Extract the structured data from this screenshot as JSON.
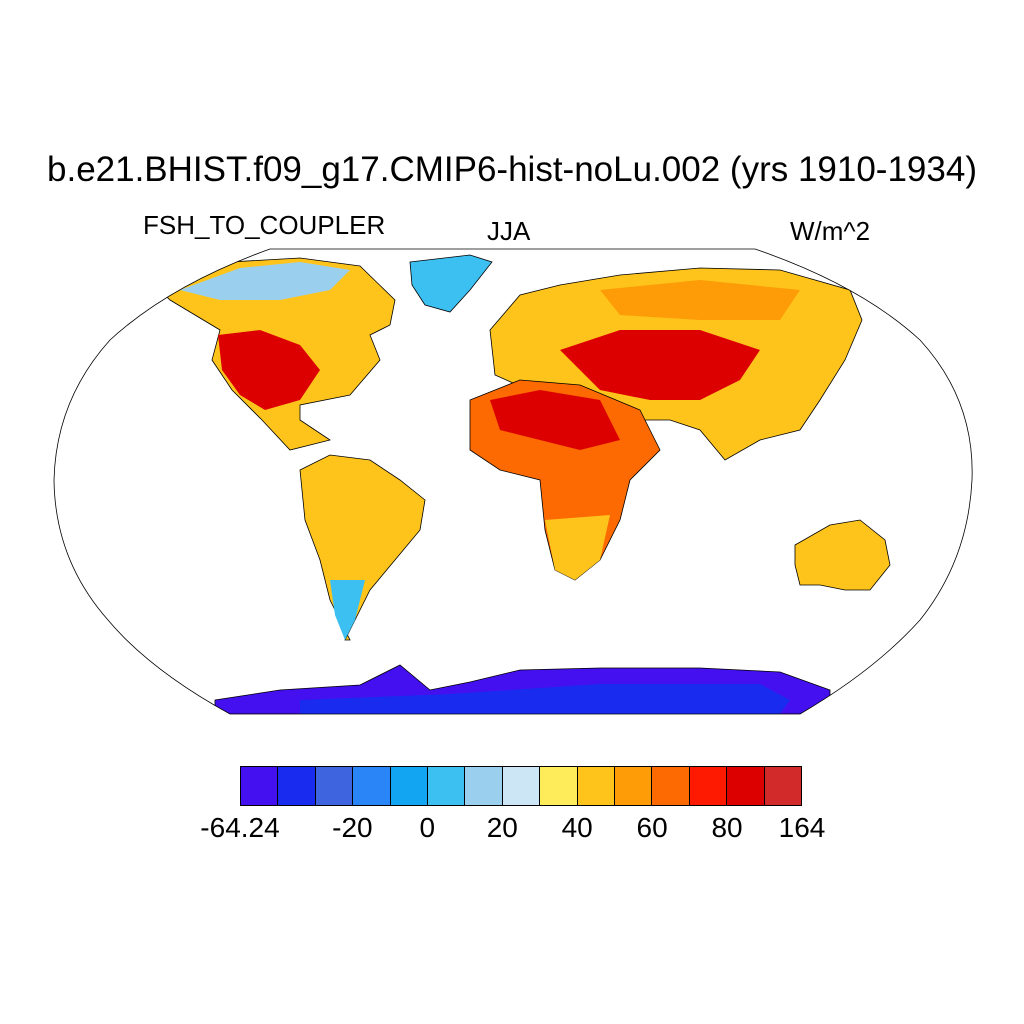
{
  "title": "b.e21.BHIST.f09_g17.CMIP6-hist-noLu.002 (yrs 1910-1934)",
  "variable": "FSH_TO_COUPLER",
  "season": "JJA",
  "units": "W/m^2",
  "map": {
    "projection": "Robinson",
    "ocean_color": "#ffffff",
    "coastline_color": "#000000"
  },
  "colorbar": {
    "colors": [
      "#4410f0",
      "#1a2bf0",
      "#3f64e0",
      "#2a86f6",
      "#12a6f2",
      "#3cc0f2",
      "#9ad0ee",
      "#cce6f6",
      "#ffec5a",
      "#fec41c",
      "#fd9c06",
      "#fd6a02",
      "#fd1a00",
      "#dd0000",
      "#d22a2a"
    ],
    "labels": [
      "-64.24",
      "-20",
      "0",
      "20",
      "40",
      "60",
      "80",
      "164"
    ]
  }
}
